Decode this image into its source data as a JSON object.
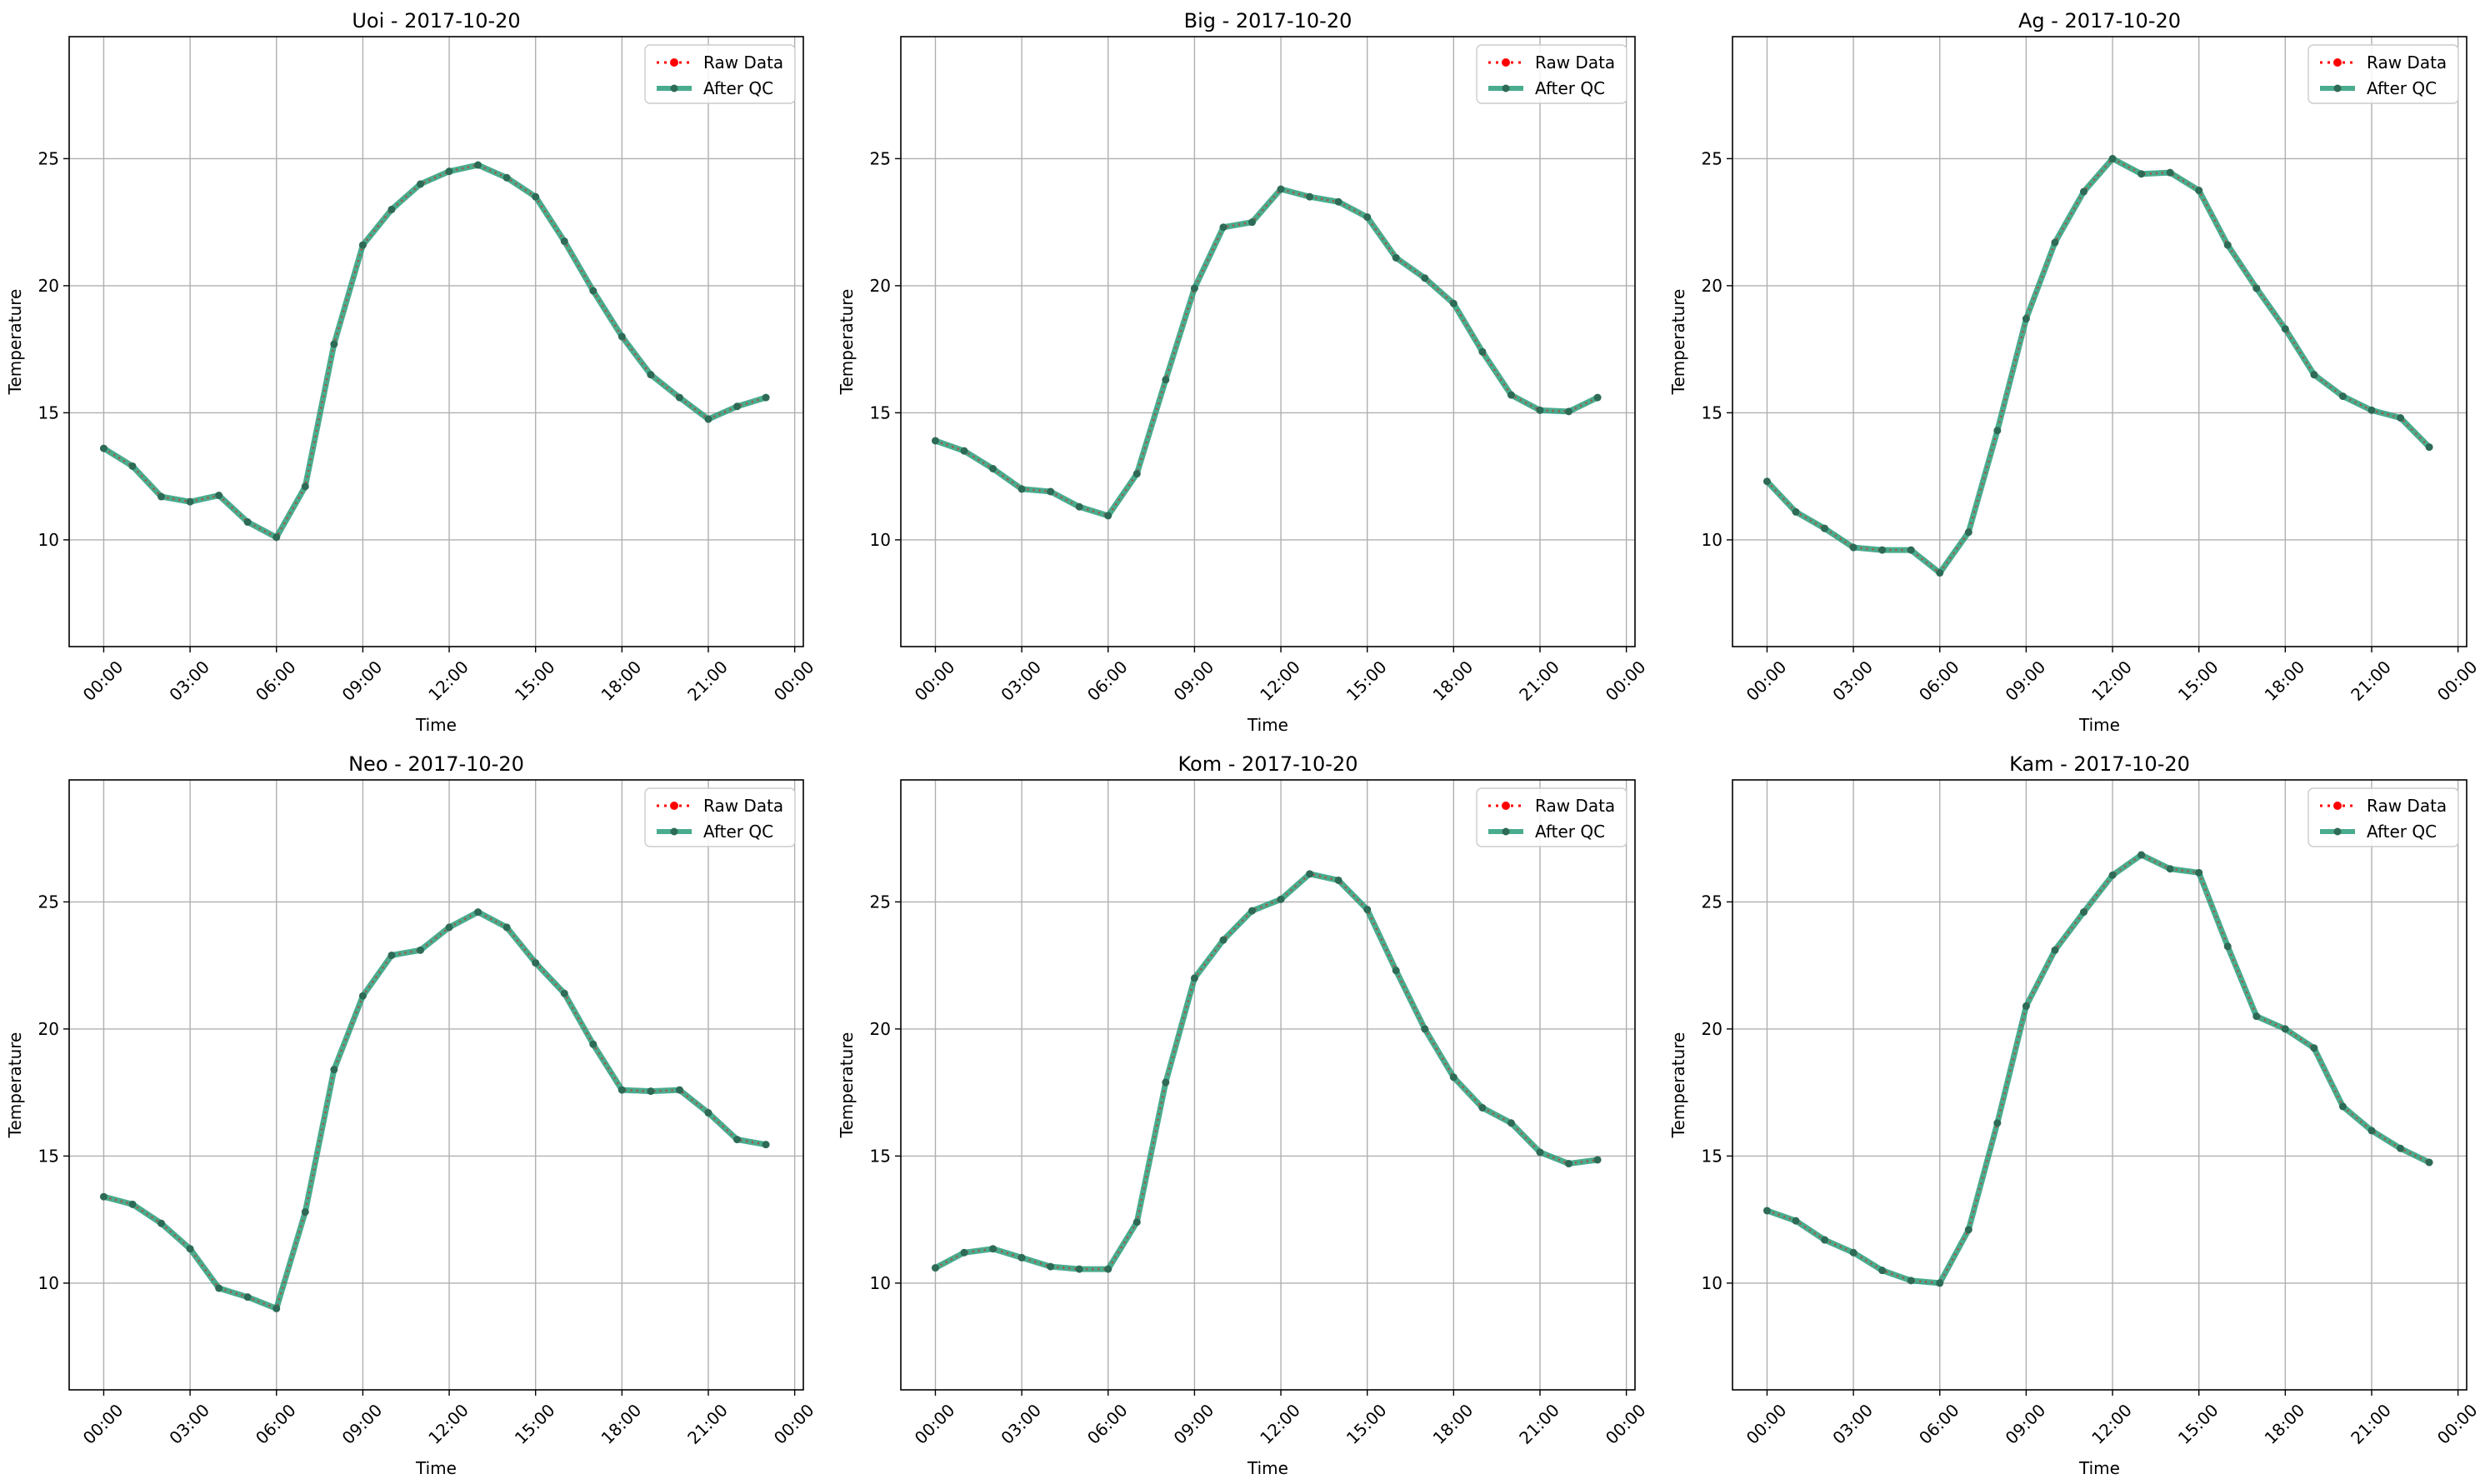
{
  "legend": {
    "raw_label": "Raw Data",
    "qc_label": "After QC",
    "position": "upper right"
  },
  "colors": {
    "raw": "#ff0000",
    "qc": "#2a9d7a",
    "marker": "#2e6b57",
    "grid": "#b0b0b0"
  },
  "x_tick_labels": [
    "00:00",
    "03:00",
    "06:00",
    "09:00",
    "12:00",
    "15:00",
    "18:00",
    "21:00",
    "00:00"
  ],
  "y_tick_labels": [
    "10",
    "15",
    "20",
    "25"
  ],
  "chart_data": [
    {
      "type": "line",
      "title": "Uoi - 2017-10-20",
      "xlabel": "Time",
      "ylabel": "Temperature",
      "x_unit": "hour of day",
      "xlim": [
        -1.2,
        24.3
      ],
      "ylim": [
        5.8,
        29.8
      ],
      "grid": true,
      "x": [
        0,
        1,
        2,
        3,
        4,
        5,
        6,
        7,
        8,
        9,
        10,
        11,
        12,
        13,
        14,
        15,
        16,
        17,
        18,
        19,
        20,
        21,
        22,
        23
      ],
      "series": [
        {
          "name": "Raw Data",
          "values": [
            13.6,
            12.9,
            11.7,
            11.5,
            11.75,
            10.7,
            10.1,
            12.1,
            17.7,
            21.6,
            23.0,
            24.0,
            24.5,
            24.75,
            24.25,
            23.5,
            21.75,
            19.8,
            18.0,
            16.5,
            15.6,
            14.75,
            15.25,
            15.6
          ]
        },
        {
          "name": "After QC",
          "values": [
            13.6,
            12.9,
            11.7,
            11.5,
            11.75,
            10.7,
            10.1,
            12.1,
            17.7,
            21.6,
            23.0,
            24.0,
            24.5,
            24.75,
            24.25,
            23.5,
            21.75,
            19.8,
            18.0,
            16.5,
            15.6,
            14.75,
            15.25,
            15.6
          ]
        }
      ]
    },
    {
      "type": "line",
      "title": "Big - 2017-10-20",
      "xlabel": "Time",
      "ylabel": "Temperature",
      "x_unit": "hour of day",
      "xlim": [
        -1.2,
        24.3
      ],
      "ylim": [
        5.8,
        29.8
      ],
      "grid": true,
      "x": [
        0,
        1,
        2,
        3,
        4,
        5,
        6,
        7,
        8,
        9,
        10,
        11,
        12,
        13,
        14,
        15,
        16,
        17,
        18,
        19,
        20,
        21,
        22,
        23
      ],
      "series": [
        {
          "name": "Raw Data",
          "values": [
            13.9,
            13.5,
            12.8,
            12.0,
            11.9,
            11.3,
            10.95,
            12.6,
            16.3,
            19.9,
            22.3,
            22.5,
            23.8,
            23.5,
            23.3,
            22.7,
            21.1,
            20.3,
            19.3,
            17.4,
            15.7,
            15.1,
            15.05,
            15.6
          ]
        },
        {
          "name": "After QC",
          "values": [
            13.9,
            13.5,
            12.8,
            12.0,
            11.9,
            11.3,
            10.95,
            12.6,
            16.3,
            19.9,
            22.3,
            22.5,
            23.8,
            23.5,
            23.3,
            22.7,
            21.1,
            20.3,
            19.3,
            17.4,
            15.7,
            15.1,
            15.05,
            15.6
          ]
        }
      ]
    },
    {
      "type": "line",
      "title": "Ag - 2017-10-20",
      "xlabel": "Time",
      "ylabel": "Temperature",
      "x_unit": "hour of day",
      "xlim": [
        -1.2,
        24.3
      ],
      "ylim": [
        5.8,
        29.8
      ],
      "grid": true,
      "x": [
        0,
        1,
        2,
        3,
        4,
        5,
        6,
        7,
        8,
        9,
        10,
        11,
        12,
        13,
        14,
        15,
        16,
        17,
        18,
        19,
        20,
        21,
        22,
        23
      ],
      "series": [
        {
          "name": "Raw Data",
          "values": [
            12.3,
            11.1,
            10.45,
            9.7,
            9.6,
            9.6,
            8.7,
            10.3,
            14.3,
            18.7,
            21.7,
            23.7,
            25.0,
            24.4,
            24.45,
            23.75,
            21.6,
            19.9,
            18.3,
            16.5,
            15.65,
            15.1,
            14.8,
            13.65
          ]
        },
        {
          "name": "After QC",
          "values": [
            12.3,
            11.1,
            10.45,
            9.7,
            9.6,
            9.6,
            8.7,
            10.3,
            14.3,
            18.7,
            21.7,
            23.7,
            25.0,
            24.4,
            24.45,
            23.75,
            21.6,
            19.9,
            18.3,
            16.5,
            15.65,
            15.1,
            14.8,
            13.65
          ]
        }
      ]
    },
    {
      "type": "line",
      "title": "Neo - 2017-10-20",
      "xlabel": "Time",
      "ylabel": "Temperature",
      "x_unit": "hour of day",
      "xlim": [
        -1.2,
        24.3
      ],
      "ylim": [
        5.8,
        29.8
      ],
      "grid": true,
      "x": [
        0,
        1,
        2,
        3,
        4,
        5,
        6,
        7,
        8,
        9,
        10,
        11,
        12,
        13,
        14,
        15,
        16,
        17,
        18,
        19,
        20,
        21,
        22,
        23
      ],
      "series": [
        {
          "name": "Raw Data",
          "values": [
            13.4,
            13.1,
            12.35,
            11.35,
            9.8,
            9.45,
            9.0,
            12.8,
            18.4,
            21.3,
            22.9,
            23.1,
            24.0,
            24.6,
            24.0,
            22.6,
            21.4,
            19.4,
            17.6,
            17.55,
            17.6,
            16.7,
            15.65,
            15.45
          ]
        },
        {
          "name": "After QC",
          "values": [
            13.4,
            13.1,
            12.35,
            11.35,
            9.8,
            9.45,
            9.0,
            12.8,
            18.4,
            21.3,
            22.9,
            23.1,
            24.0,
            24.6,
            24.0,
            22.6,
            21.4,
            19.4,
            17.6,
            17.55,
            17.6,
            16.7,
            15.65,
            15.45
          ]
        }
      ]
    },
    {
      "type": "line",
      "title": "Kom - 2017-10-20",
      "xlabel": "Time",
      "ylabel": "Temperature",
      "x_unit": "hour of day",
      "xlim": [
        -1.2,
        24.3
      ],
      "ylim": [
        5.8,
        29.8
      ],
      "grid": true,
      "x": [
        0,
        1,
        2,
        3,
        4,
        5,
        6,
        7,
        8,
        9,
        10,
        11,
        12,
        13,
        14,
        15,
        16,
        17,
        18,
        19,
        20,
        21,
        22,
        23
      ],
      "series": [
        {
          "name": "Raw Data",
          "values": [
            10.6,
            11.2,
            11.35,
            11.0,
            10.65,
            10.55,
            10.55,
            12.4,
            17.9,
            22.0,
            23.5,
            24.65,
            25.1,
            26.1,
            25.85,
            24.7,
            22.3,
            20.0,
            18.1,
            16.9,
            16.3,
            15.15,
            14.7,
            14.85
          ]
        },
        {
          "name": "After QC",
          "values": [
            10.6,
            11.2,
            11.35,
            11.0,
            10.65,
            10.55,
            10.55,
            12.4,
            17.9,
            22.0,
            23.5,
            24.65,
            25.1,
            26.1,
            25.85,
            24.7,
            22.3,
            20.0,
            18.1,
            16.9,
            16.3,
            15.15,
            14.7,
            14.85
          ]
        }
      ]
    },
    {
      "type": "line",
      "title": "Kam - 2017-10-20",
      "xlabel": "Time",
      "ylabel": "Temperature",
      "x_unit": "hour of day",
      "xlim": [
        -1.2,
        24.3
      ],
      "ylim": [
        5.8,
        29.8
      ],
      "grid": true,
      "x": [
        0,
        1,
        2,
        3,
        4,
        5,
        6,
        7,
        8,
        9,
        10,
        11,
        12,
        13,
        14,
        15,
        16,
        17,
        18,
        19,
        20,
        21,
        22,
        23
      ],
      "series": [
        {
          "name": "Raw Data",
          "values": [
            12.85,
            12.45,
            11.7,
            11.2,
            10.5,
            10.1,
            10.0,
            12.1,
            16.3,
            20.9,
            23.1,
            24.6,
            26.05,
            26.85,
            26.3,
            26.15,
            23.25,
            20.5,
            20.0,
            19.25,
            16.95,
            16.0,
            15.3,
            14.75
          ]
        },
        {
          "name": "After QC",
          "values": [
            12.85,
            12.45,
            11.7,
            11.2,
            10.5,
            10.1,
            10.0,
            12.1,
            16.3,
            20.9,
            23.1,
            24.6,
            26.05,
            26.85,
            26.3,
            26.15,
            23.25,
            20.5,
            20.0,
            19.25,
            16.95,
            16.0,
            15.3,
            14.75
          ]
        }
      ]
    }
  ]
}
